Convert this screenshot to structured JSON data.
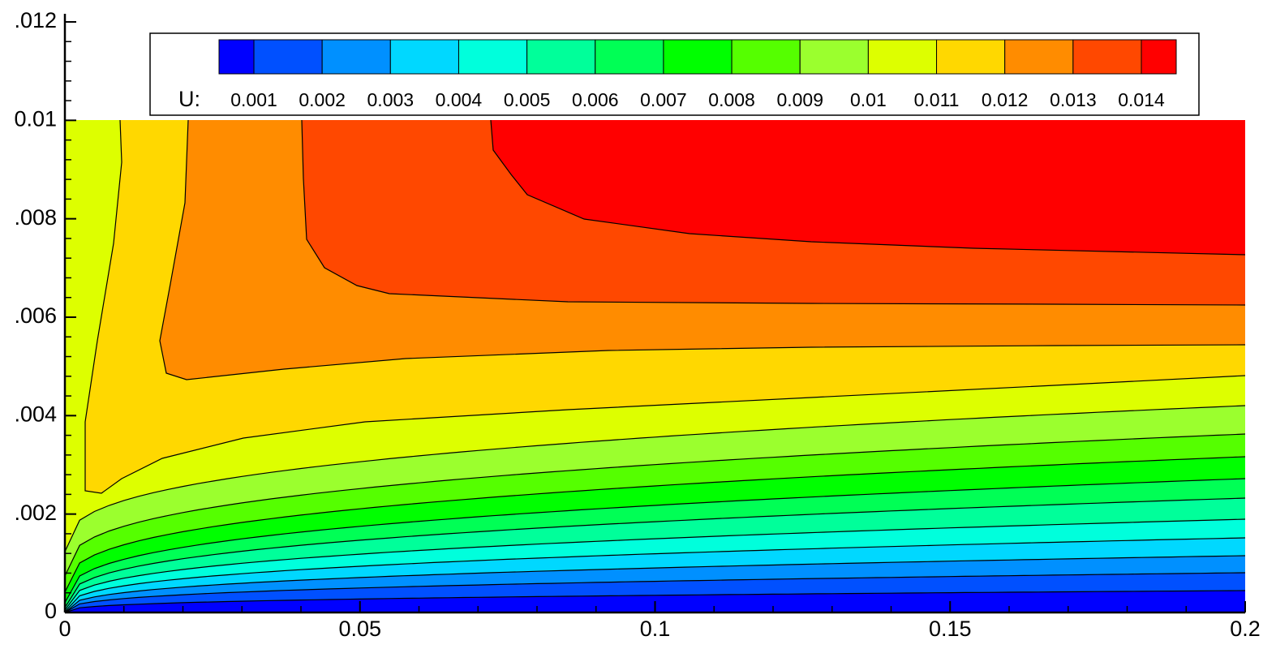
{
  "chart_data": {
    "type": "contour",
    "legend_title": "U:",
    "levels": [
      0.001,
      0.002,
      0.003,
      0.004,
      0.005,
      0.006,
      0.007,
      0.008,
      0.009,
      0.01,
      0.011,
      0.012,
      0.013,
      0.014
    ],
    "colors": [
      "#0000ff",
      "#0050ff",
      "#0090ff",
      "#00d8ff",
      "#00ffdc",
      "#00ff9a",
      "#00ff55",
      "#00ff00",
      "#55ff00",
      "#9bff2e",
      "#ddff00",
      "#ffd800",
      "#ff8c00",
      "#ff4800",
      "#ff0000"
    ],
    "xlim": [
      0,
      0.2
    ],
    "ylim": [
      0,
      0.012
    ],
    "xticks": [
      0,
      0.05,
      0.1,
      0.15,
      0.2
    ],
    "yticks": [
      0,
      {
        "value": 0.002,
        "label": ".002"
      },
      {
        "value": 0.004,
        "label": ".004"
      },
      {
        "value": 0.006,
        "label": ".006"
      },
      {
        "value": 0.008,
        "label": ".008"
      },
      0.01,
      {
        "value": 0.012,
        "label": ".012"
      }
    ]
  }
}
